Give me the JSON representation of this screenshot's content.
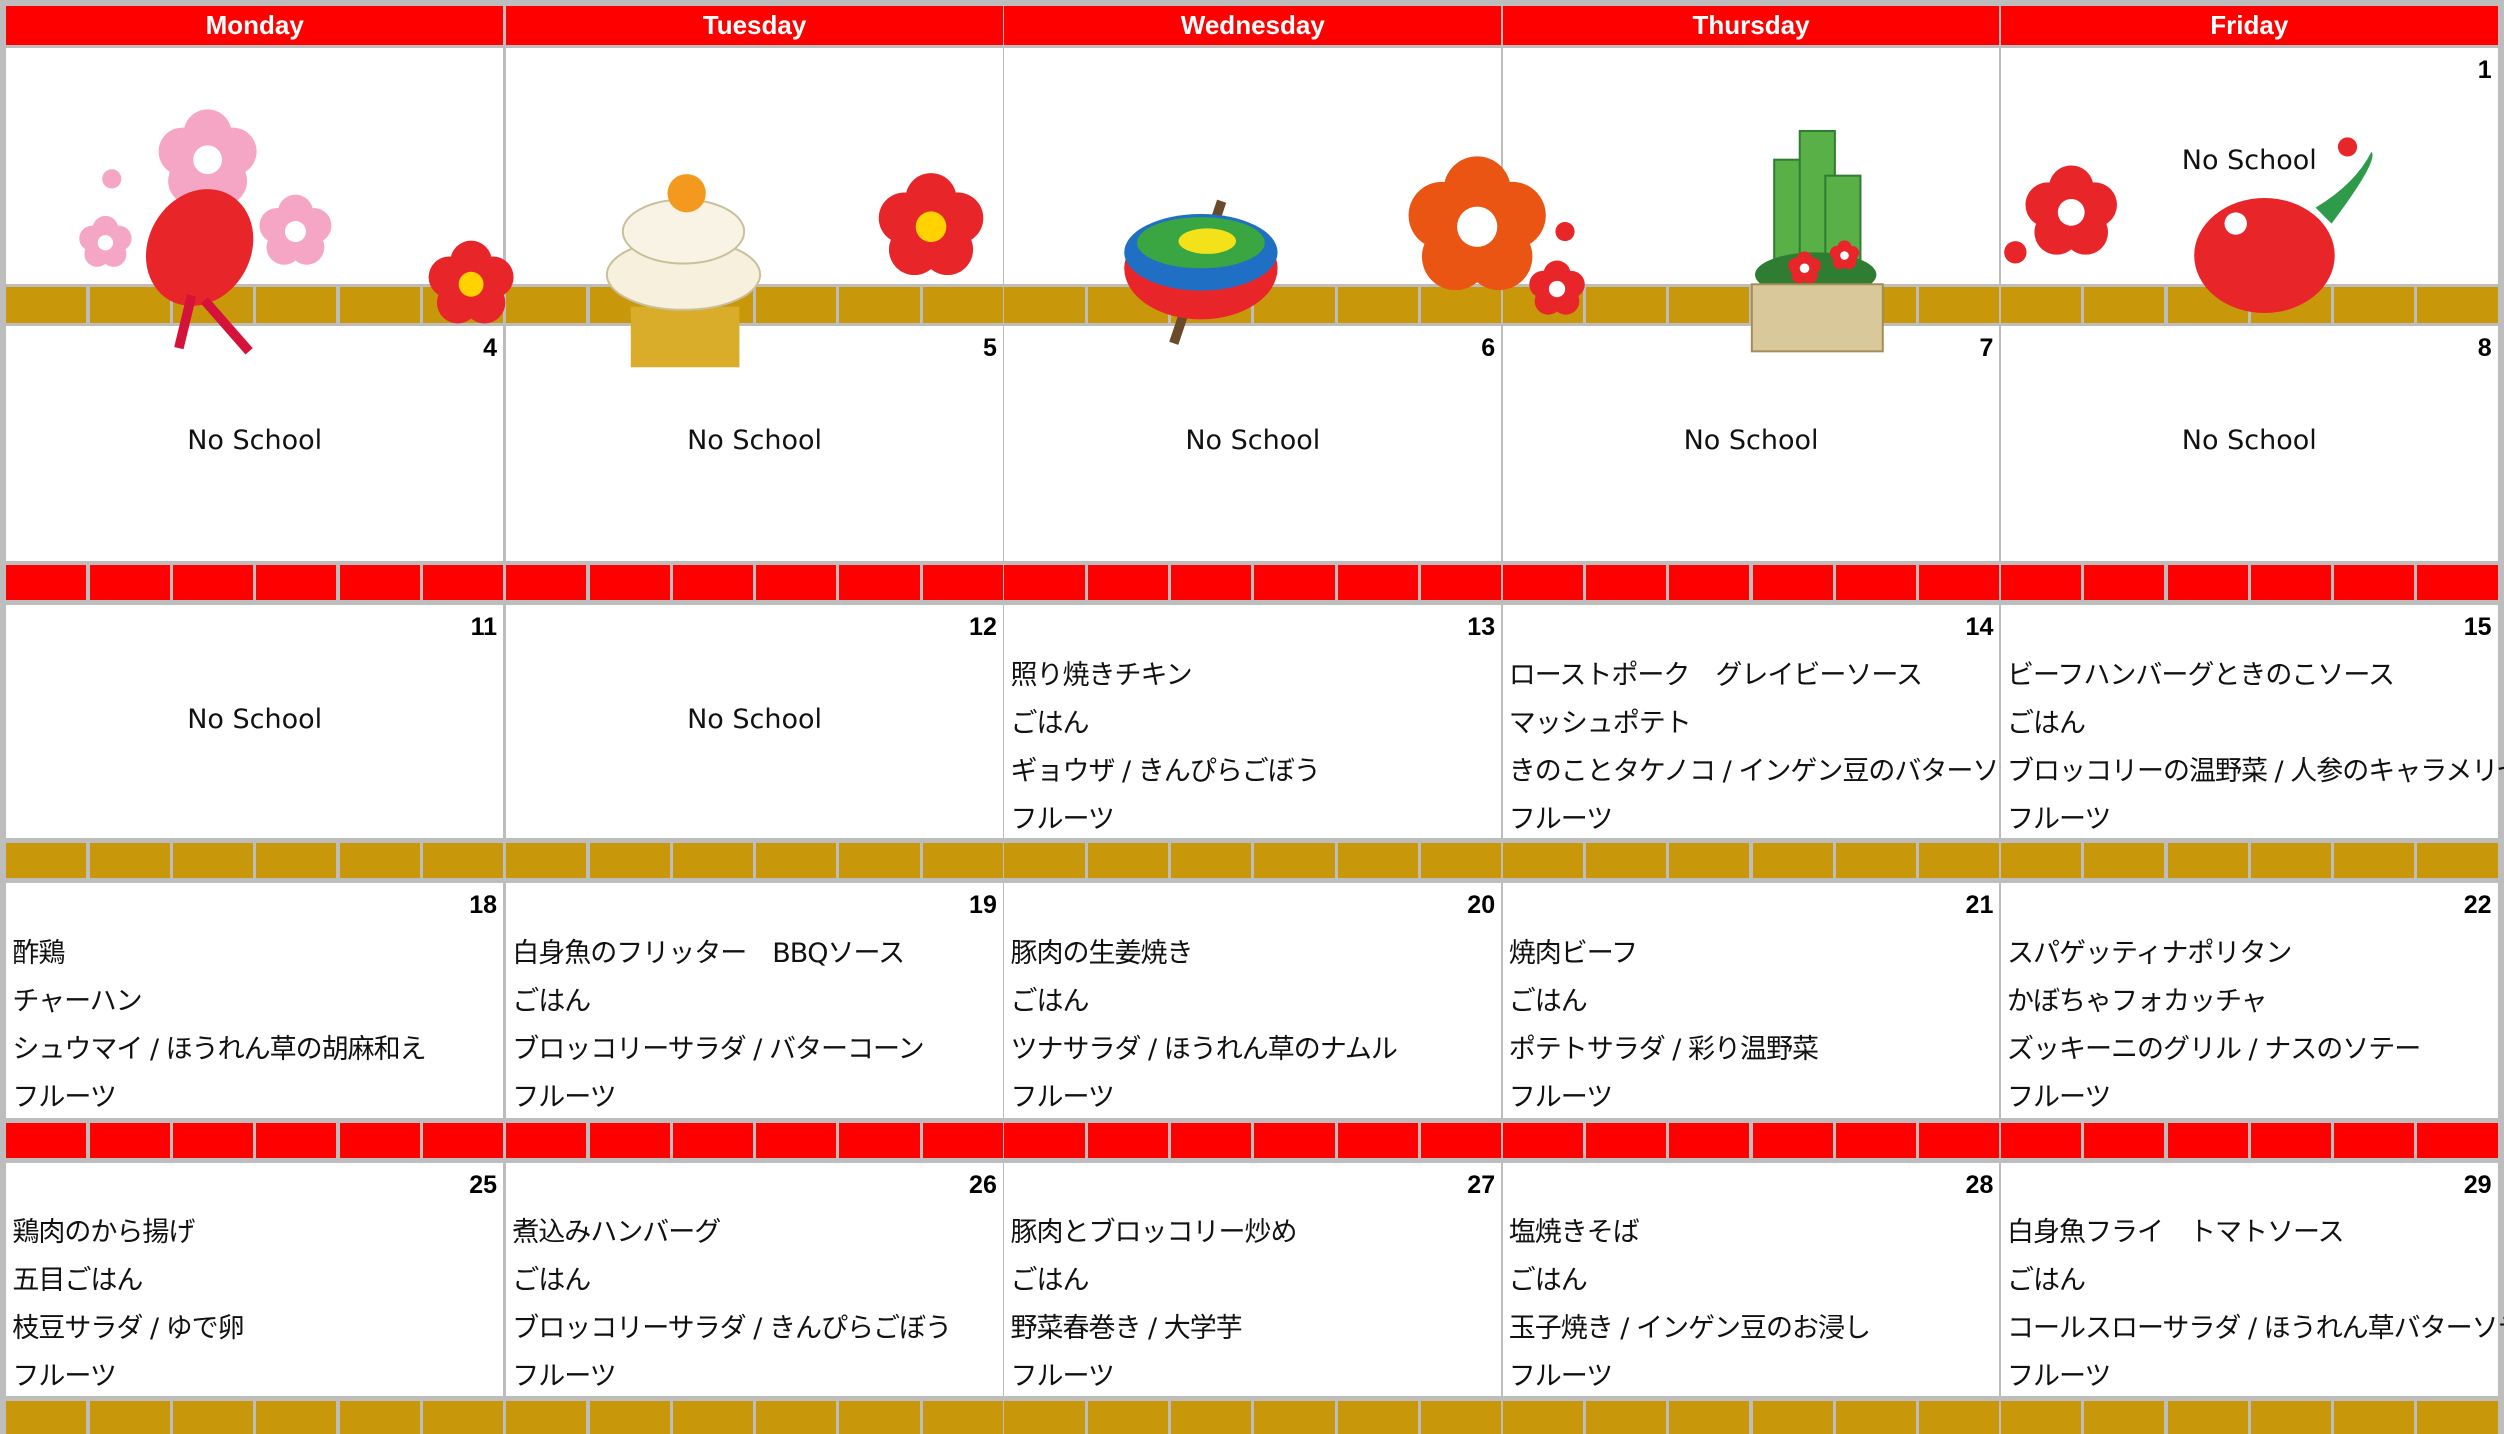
{
  "header": {
    "days": [
      "Monday",
      "Tuesday",
      "Wednesday",
      "Thursday",
      "Friday"
    ]
  },
  "weeks": [
    {
      "days": [
        null,
        null,
        null,
        null,
        {
          "date": "1",
          "lines": [
            "No School"
          ]
        }
      ]
    },
    {
      "days": [
        {
          "date": "4",
          "lines": [
            "No School"
          ]
        },
        {
          "date": "5",
          "lines": [
            "No School"
          ]
        },
        {
          "date": "6",
          "lines": [
            "No School"
          ]
        },
        {
          "date": "7",
          "lines": [
            "No School"
          ]
        },
        {
          "date": "8",
          "lines": [
            "No School"
          ]
        }
      ]
    },
    {
      "days": [
        {
          "date": "11",
          "lines": [
            "No School"
          ]
        },
        {
          "date": "12",
          "lines": [
            "No School"
          ]
        },
        {
          "date": "13",
          "lines": [
            "照り焼きチキン",
            "ごはん",
            "ギョウザ / きんぴらごぼう",
            "フルーツ"
          ]
        },
        {
          "date": "14",
          "lines": [
            "ローストポーク　グレイビーソース",
            "マッシュポテト",
            "きのことタケノコ / インゲン豆のバターソテー",
            "フルーツ"
          ]
        },
        {
          "date": "15",
          "lines": [
            "ビーフハンバーグときのこソース",
            "ごはん",
            "ブロッコリーの温野菜 / 人参のキャラメリゼ",
            "フルーツ"
          ]
        }
      ]
    },
    {
      "days": [
        {
          "date": "18",
          "lines": [
            "酢鶏",
            "チャーハン",
            "シュウマイ / ほうれん草の胡麻和え",
            "フルーツ"
          ]
        },
        {
          "date": "19",
          "lines": [
            "白身魚のフリッター　BBQソース",
            "ごはん",
            "ブロッコリーサラダ / バターコーン",
            "フルーツ"
          ]
        },
        {
          "date": "20",
          "lines": [
            "豚肉の生姜焼き",
            "ごはん",
            "ツナサラダ / ほうれん草のナムル",
            "フルーツ"
          ]
        },
        {
          "date": "21",
          "lines": [
            "焼肉ビーフ",
            "ごはん",
            "ポテトサラダ / 彩り温野菜",
            "フルーツ"
          ]
        },
        {
          "date": "22",
          "lines": [
            "スパゲッティナポリタン",
            "かぼちゃフォカッチャ",
            "ズッキーニのグリル / ナスのソテー",
            "フルーツ"
          ]
        }
      ]
    },
    {
      "days": [
        {
          "date": "25",
          "lines": [
            "鶏肉のから揚げ",
            "五目ごはん",
            "枝豆サラダ / ゆで卵",
            "フルーツ"
          ]
        },
        {
          "date": "26",
          "lines": [
            "煮込みハンバーグ",
            "ごはん",
            "ブロッコリーサラダ / きんぴらごぼう",
            "フルーツ"
          ]
        },
        {
          "date": "27",
          "lines": [
            "豚肉とブロッコリー炒め",
            "ごはん",
            "野菜春巻き / 大学芋",
            "フルーツ"
          ]
        },
        {
          "date": "28",
          "lines": [
            "塩焼きそば",
            "ごはん",
            "玉子焼き / インゲン豆のお浸し",
            "フルーツ"
          ]
        },
        {
          "date": "29",
          "lines": [
            "白身魚フライ　トマトソース",
            "ごはん",
            "コールスローサラダ / ほうれん草バターソテー",
            "フルーツ"
          ]
        }
      ]
    }
  ]
}
